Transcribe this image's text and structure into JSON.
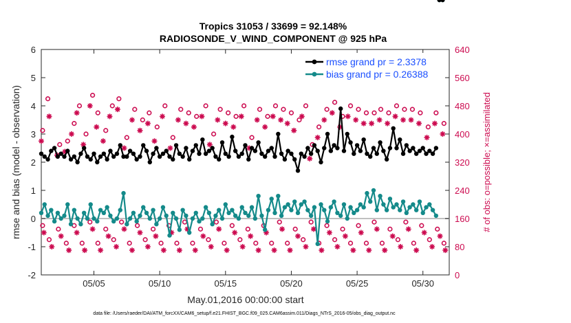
{
  "chart_data": {
    "type": "line",
    "title_line1": "Tropics 31053 / 33699 = 92.148%",
    "title_line2": "RADIOSONDE_V_WIND_COMPONENT @ 925 hPa",
    "xlabel": "May.01,2016 00:00:00 start",
    "ylabel": "rmse and bias (model - observation)",
    "ylabel_right": "# of obs: o=possible; ×=assimilated",
    "footer": "data file: /Users/raeder/DAI/ATM_forcXX/CAM6_setup/f.e21.FHIST_BGC.f09_025.CAM6assim.011/Diags_NTrS_2016-05/obs_diag_output.nc",
    "xlim": [
      1,
      32
    ],
    "ylim": [
      -2,
      6
    ],
    "ylim_right": [
      0,
      640
    ],
    "x_ticks": [
      5,
      10,
      15,
      20,
      25,
      30
    ],
    "x_tick_labels": [
      "05/05",
      "05/10",
      "05/15",
      "05/20",
      "05/25",
      "05/30"
    ],
    "y_tick_labels": [
      "-2",
      "-1",
      "0",
      "1",
      "2",
      "3",
      "4",
      "5",
      "6"
    ],
    "y_right_tick_labels": [
      "0",
      "80",
      "160",
      "240",
      "320",
      "400",
      "480",
      "560",
      "640"
    ],
    "legend": [
      "rmse grand pr = 2.3378",
      "bias grand pr = 0.26388"
    ],
    "colors": {
      "rmse": "#000000",
      "bias": "#148a8a",
      "obs": "#cc0a4f",
      "zero": "#c0c0c0"
    },
    "rmse_x": [
      1.0,
      1.25,
      1.5,
      1.75,
      2.0,
      2.25,
      2.5,
      2.75,
      3.0,
      3.25,
      3.5,
      3.75,
      4.0,
      4.25,
      4.5,
      4.75,
      5.0,
      5.25,
      5.5,
      5.75,
      6.0,
      6.25,
      6.5,
      6.75,
      7.0,
      7.25,
      7.5,
      7.75,
      8.0,
      8.25,
      8.5,
      8.75,
      9.0,
      9.25,
      9.5,
      9.75,
      10.0,
      10.25,
      10.5,
      10.75,
      11.0,
      11.25,
      11.5,
      11.75,
      12.0,
      12.25,
      12.5,
      12.75,
      13.0,
      13.25,
      13.5,
      13.75,
      14.0,
      14.25,
      14.5,
      14.75,
      15.0,
      15.25,
      15.5,
      15.75,
      16.0,
      16.25,
      16.5,
      16.75,
      17.0,
      17.25,
      17.5,
      17.75,
      18.0,
      18.25,
      18.5,
      18.75,
      19.0,
      19.25,
      19.5,
      19.75,
      20.0,
      20.25,
      20.5,
      20.75,
      21.0,
      21.25,
      21.5,
      21.75,
      22.0,
      22.25,
      22.5,
      22.75,
      23.0,
      23.25,
      23.5,
      23.75,
      24.0,
      24.25,
      24.5,
      24.75,
      25.0,
      25.25,
      25.5,
      25.75,
      26.0,
      26.25,
      26.5,
      26.75,
      27.0,
      27.25,
      27.5,
      27.75,
      28.0,
      28.25,
      28.5,
      28.75,
      29.0,
      29.25,
      29.5,
      29.75,
      30.0,
      30.25,
      30.5,
      30.75,
      31.0,
      31.25,
      31.5
    ],
    "rmse_y": [
      2.3,
      2.2,
      2.1,
      2.4,
      2.5,
      2.2,
      2.3,
      2.2,
      2.4,
      2.1,
      2.2,
      2.0,
      2.3,
      2.5,
      2.2,
      2.1,
      2.3,
      2.0,
      2.2,
      2.3,
      2.1,
      2.4,
      2.2,
      2.3,
      2.6,
      2.2,
      2.2,
      2.4,
      2.3,
      2.1,
      2.2,
      2.6,
      2.4,
      2.0,
      2.3,
      2.5,
      2.2,
      2.3,
      2.4,
      2.2,
      2.1,
      2.6,
      2.3,
      2.2,
      2.5,
      2.1,
      2.4,
      2.6,
      2.3,
      2.8,
      2.3,
      2.4,
      2.5,
      2.2,
      2.1,
      2.7,
      2.3,
      2.2,
      2.9,
      2.4,
      2.2,
      2.3,
      2.6,
      2.1,
      2.5,
      2.4,
      2.7,
      2.3,
      2.2,
      2.4,
      2.5,
      2.2,
      3.0,
      2.3,
      2.1,
      2.4,
      2.3,
      2.1,
      1.7,
      2.3,
      2.2,
      2.5,
      2.3,
      2.6,
      2.4,
      2.0,
      2.5,
      3.0,
      2.4,
      2.6,
      2.5,
      3.9,
      2.4,
      3.0,
      2.7,
      2.3,
      2.6,
      2.4,
      2.8,
      2.3,
      2.2,
      2.5,
      2.3,
      2.7,
      2.4,
      2.1,
      2.5,
      3.2,
      2.5,
      2.8,
      2.3,
      2.6,
      2.4,
      2.5,
      2.3,
      2.4,
      2.5,
      2.3,
      2.4,
      2.3,
      2.5
    ],
    "bias_x": [
      1.0,
      1.25,
      1.5,
      1.75,
      2.0,
      2.25,
      2.5,
      2.75,
      3.0,
      3.25,
      3.5,
      3.75,
      4.0,
      4.25,
      4.5,
      4.75,
      5.0,
      5.25,
      5.5,
      5.75,
      6.0,
      6.25,
      6.5,
      6.75,
      7.0,
      7.25,
      7.5,
      7.75,
      8.0,
      8.25,
      8.5,
      8.75,
      9.0,
      9.25,
      9.5,
      9.75,
      10.0,
      10.25,
      10.5,
      10.75,
      11.0,
      11.25,
      11.5,
      11.75,
      12.0,
      12.25,
      12.5,
      12.75,
      13.0,
      13.25,
      13.5,
      13.75,
      14.0,
      14.25,
      14.5,
      14.75,
      15.0,
      15.25,
      15.5,
      15.75,
      16.0,
      16.25,
      16.5,
      16.75,
      17.0,
      17.25,
      17.5,
      17.75,
      18.0,
      18.25,
      18.5,
      18.75,
      19.0,
      19.25,
      19.5,
      19.75,
      20.0,
      20.25,
      20.5,
      20.75,
      21.0,
      21.25,
      21.5,
      21.75,
      22.0,
      22.25,
      22.5,
      22.75,
      23.0,
      23.25,
      23.5,
      23.75,
      24.0,
      24.25,
      24.5,
      24.75,
      25.0,
      25.25,
      25.5,
      25.75,
      26.0,
      26.25,
      26.5,
      26.75,
      27.0,
      27.25,
      27.5,
      27.75,
      28.0,
      28.25,
      28.5,
      28.75,
      29.0,
      29.25,
      29.5,
      29.75,
      30.0,
      30.25,
      30.5,
      30.75,
      31.0,
      31.25,
      31.5
    ],
    "bias_y": [
      0.2,
      0.5,
      0.1,
      0.3,
      -0.1,
      0.2,
      0.0,
      0.1,
      0.5,
      -0.2,
      0.3,
      0.0,
      -0.2,
      0.2,
      0.0,
      0.5,
      0.0,
      -0.1,
      0.3,
      0.2,
      0.4,
      0.1,
      -0.1,
      0.0,
      0.3,
      0.9,
      -0.2,
      0.0,
      0.2,
      -0.1,
      0.1,
      0.4,
      0.2,
      0.0,
      0.3,
      -0.2,
      0.0,
      0.4,
      0.1,
      -0.6,
      0.2,
      0.0,
      -0.4,
      0.3,
      0.1,
      -0.5,
      0.0,
      0.2,
      -0.1,
      0.0,
      0.4,
      0.2,
      -0.2,
      0.1,
      0.3,
      0.0,
      0.5,
      0.2,
      0.3,
      0.1,
      0.0,
      0.4,
      0.2,
      0.1,
      0.4,
      0.0,
      0.8,
      0.1,
      -0.4,
      0.3,
      0.7,
      0.2,
      0.8,
      0.1,
      0.4,
      0.5,
      0.3,
      0.6,
      0.2,
      0.5,
      0.6,
      0.3,
      0.1,
      0.4,
      -0.9,
      0.5,
      0.3,
      -0.1,
      0.4,
      0.6,
      0.2,
      0.1,
      0.5,
      0.0,
      0.4,
      0.2,
      0.3,
      0.5,
      0.4,
      0.9,
      0.6,
      1.0,
      0.3,
      0.8,
      0.5,
      0.3,
      0.7,
      0.4,
      0.5,
      0.3,
      0.6,
      0.2,
      0.4,
      0.5,
      0.3,
      0.6,
      0.2,
      0.4,
      0.5,
      0.3,
      0.1
    ],
    "possible_high_x": [
      1.1,
      1.5,
      2.4,
      3.0,
      3.5,
      3.9,
      4.4,
      4.9,
      5.3,
      5.9,
      6.4,
      6.9,
      7.5,
      8.1,
      8.7,
      9.2,
      9.8,
      10.4,
      11.0,
      11.6,
      12.2,
      12.8,
      13.5,
      14.1,
      14.6,
      15.2,
      15.8,
      16.4,
      17.0,
      17.6,
      18.2,
      18.8,
      19.4,
      20.0,
      20.6,
      21.1,
      21.6,
      22.1,
      22.7,
      23.3,
      23.9,
      24.5,
      25.1,
      25.7,
      26.3,
      26.8,
      27.4,
      28.0,
      28.6,
      29.2,
      29.8,
      30.4,
      31.0,
      31.6
    ],
    "possible_high_y": [
      410,
      500,
      370,
      380,
      430,
      480,
      400,
      510,
      460,
      410,
      480,
      500,
      390,
      470,
      440,
      460,
      420,
      480,
      390,
      470,
      460,
      450,
      480,
      400,
      470,
      460,
      450,
      480,
      390,
      470,
      450,
      480,
      470,
      460,
      440,
      480,
      370,
      420,
      470,
      490,
      450,
      480,
      470,
      460,
      460,
      470,
      460,
      480,
      470,
      470,
      460,
      420,
      460,
      430
    ],
    "assim_high_x": [
      1.0,
      1.6,
      2.2,
      2.8,
      3.3,
      3.7,
      4.2,
      4.7,
      5.2,
      5.7,
      6.2,
      6.8,
      7.3,
      7.9,
      8.5,
      9.1,
      9.6,
      10.2,
      10.8,
      11.4,
      12.0,
      12.6,
      13.2,
      13.8,
      14.4,
      15.0,
      15.6,
      16.2,
      16.8,
      17.4,
      18.0,
      18.6,
      19.2,
      19.7,
      20.2,
      20.8,
      21.4,
      22.0,
      22.5,
      23.1,
      23.7,
      24.3,
      24.9,
      25.5,
      26.1,
      26.7,
      27.3,
      27.9,
      28.5,
      29.1,
      29.7,
      30.3,
      30.9,
      31.5
    ],
    "assim_high_y": [
      380,
      450,
      340,
      350,
      400,
      460,
      370,
      480,
      420,
      380,
      450,
      470,
      360,
      440,
      410,
      430,
      380,
      450,
      360,
      440,
      430,
      420,
      450,
      370,
      440,
      430,
      420,
      450,
      360,
      440,
      420,
      450,
      440,
      430,
      410,
      450,
      330,
      390,
      440,
      460,
      420,
      450,
      440,
      430,
      430,
      440,
      430,
      450,
      440,
      440,
      430,
      390,
      430,
      400
    ],
    "possible_low_x": [
      1.1,
      1.6,
      2.3,
      2.9,
      3.5,
      4.1,
      4.7,
      5.3,
      5.9,
      6.5,
      7.1,
      7.7,
      8.3,
      8.9,
      9.5,
      10.1,
      10.7,
      11.3,
      11.9,
      12.5,
      13.1,
      13.7,
      14.3,
      14.9,
      15.5,
      16.1,
      16.7,
      17.3,
      17.9,
      18.5,
      19.1,
      19.7,
      20.3,
      20.9,
      21.5,
      22.1,
      22.7,
      23.3,
      23.9,
      24.5,
      25.1,
      25.7,
      26.3,
      26.9,
      27.5,
      28.1,
      28.7,
      29.3,
      29.9,
      30.5,
      31.1,
      31.6
    ],
    "possible_low_y": [
      140,
      100,
      130,
      90,
      140,
      90,
      150,
      90,
      130,
      100,
      150,
      90,
      140,
      100,
      130,
      90,
      140,
      90,
      150,
      90,
      130,
      100,
      150,
      90,
      140,
      100,
      130,
      90,
      140,
      90,
      150,
      90,
      130,
      100,
      150,
      90,
      140,
      100,
      130,
      90,
      140,
      90,
      150,
      90,
      130,
      100,
      150,
      90,
      140,
      100,
      130,
      90
    ],
    "assim_low_x": [
      1.2,
      1.8,
      2.5,
      3.1,
      3.7,
      4.3,
      4.9,
      5.5,
      6.1,
      6.7,
      7.3,
      7.9,
      8.5,
      9.1,
      9.7,
      10.3,
      10.9,
      11.5,
      12.1,
      12.7,
      13.3,
      13.9,
      14.5,
      15.1,
      15.7,
      16.3,
      16.9,
      17.5,
      18.1,
      18.7,
      19.3,
      19.9,
      20.5,
      21.1,
      21.7,
      22.3,
      22.9,
      23.5,
      24.1,
      24.7,
      25.3,
      25.9,
      26.5,
      27.1,
      27.7,
      28.3,
      28.9,
      29.5,
      30.1,
      30.7,
      31.3,
      31.7
    ],
    "assim_low_y": [
      120,
      80,
      110,
      70,
      120,
      70,
      130,
      70,
      110,
      80,
      130,
      70,
      120,
      80,
      110,
      70,
      120,
      70,
      130,
      70,
      110,
      80,
      130,
      70,
      120,
      80,
      110,
      70,
      120,
      70,
      130,
      70,
      110,
      80,
      130,
      70,
      120,
      80,
      110,
      70,
      120,
      70,
      130,
      70,
      110,
      80,
      130,
      70,
      120,
      80,
      110,
      70
    ]
  }
}
